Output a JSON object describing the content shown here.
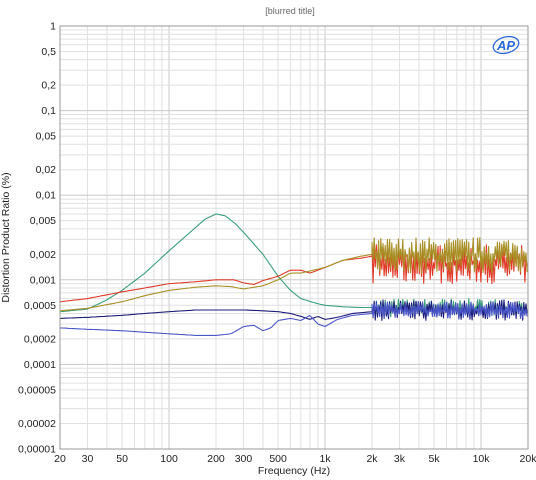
{
  "chart_data": {
    "type": "line",
    "title": "[blurred title]",
    "xlabel": "Frequency (Hz)",
    "ylabel": "Distortion Product Ratio (%)",
    "xscale": "log",
    "yscale": "log",
    "xlim": [
      20,
      20000
    ],
    "ylim": [
      1e-05,
      1
    ],
    "grid": true,
    "legend": "none",
    "logo": "AP",
    "x_tick_labels": [
      {
        "v": 20,
        "t": "20"
      },
      {
        "v": 30,
        "t": "30"
      },
      {
        "v": 50,
        "t": "50"
      },
      {
        "v": 100,
        "t": "100"
      },
      {
        "v": 200,
        "t": "200"
      },
      {
        "v": 300,
        "t": "300"
      },
      {
        "v": 500,
        "t": "500"
      },
      {
        "v": 1000,
        "t": "1k"
      },
      {
        "v": 2000,
        "t": "2k"
      },
      {
        "v": 3000,
        "t": "3k"
      },
      {
        "v": 5000,
        "t": "5k"
      },
      {
        "v": 10000,
        "t": "10k"
      },
      {
        "v": 20000,
        "t": "20k"
      }
    ],
    "y_tick_labels": [
      {
        "v": 1,
        "t": "1"
      },
      {
        "v": 0.5,
        "t": "0,5"
      },
      {
        "v": 0.2,
        "t": "0,2"
      },
      {
        "v": 0.1,
        "t": "0,1"
      },
      {
        "v": 0.05,
        "t": "0,05"
      },
      {
        "v": 0.02,
        "t": "0,02"
      },
      {
        "v": 0.01,
        "t": "0,01"
      },
      {
        "v": 0.005,
        "t": "0,005"
      },
      {
        "v": 0.002,
        "t": "0,002"
      },
      {
        "v": 0.001,
        "t": "0,001"
      },
      {
        "v": 0.0005,
        "t": "0,0005"
      },
      {
        "v": 0.0002,
        "t": "0,0002"
      },
      {
        "v": 0.0001,
        "t": "0,0001"
      },
      {
        "v": 5e-05,
        "t": "0,00005"
      },
      {
        "v": 2e-05,
        "t": "0,00002"
      },
      {
        "v": 1e-05,
        "t": "0,00001"
      }
    ],
    "series": [
      {
        "color": "#3aa07a",
        "points": [
          [
            20,
            0.00042
          ],
          [
            30,
            0.00045
          ],
          [
            40,
            0.00058
          ],
          [
            50,
            0.00075
          ],
          [
            70,
            0.0012
          ],
          [
            100,
            0.0022
          ],
          [
            140,
            0.0038
          ],
          [
            170,
            0.0052
          ],
          [
            200,
            0.006
          ],
          [
            230,
            0.0057
          ],
          [
            270,
            0.0045
          ],
          [
            320,
            0.0032
          ],
          [
            400,
            0.002
          ],
          [
            500,
            0.0011
          ],
          [
            600,
            0.00075
          ],
          [
            700,
            0.0006
          ],
          [
            900,
            0.00052
          ],
          [
            1000,
            0.0005
          ],
          [
            1300,
            0.00048
          ],
          [
            1700,
            0.00047
          ],
          [
            2000,
            0.00047
          ]
        ],
        "noise": {
          "from": 2000,
          "to": 20000,
          "lo": 0.00036,
          "hi": 0.0006
        }
      },
      {
        "color": "#e23a2a",
        "points": [
          [
            20,
            0.00055
          ],
          [
            30,
            0.0006
          ],
          [
            50,
            0.00072
          ],
          [
            70,
            0.0008
          ],
          [
            100,
            0.0009
          ],
          [
            150,
            0.00095
          ],
          [
            200,
            0.001
          ],
          [
            260,
            0.001
          ],
          [
            300,
            0.00092
          ],
          [
            350,
            0.00088
          ],
          [
            400,
            0.00098
          ],
          [
            500,
            0.0011
          ],
          [
            600,
            0.0013
          ],
          [
            700,
            0.0013
          ],
          [
            800,
            0.0012
          ],
          [
            1000,
            0.0014
          ],
          [
            1300,
            0.0017
          ],
          [
            1700,
            0.0018
          ],
          [
            2000,
            0.0019
          ]
        ],
        "noise": {
          "from": 2000,
          "to": 20000,
          "lo": 0.0009,
          "hi": 0.0026
        }
      },
      {
        "color": "#a89026",
        "points": [
          [
            20,
            0.00043
          ],
          [
            30,
            0.00046
          ],
          [
            50,
            0.00055
          ],
          [
            70,
            0.00065
          ],
          [
            100,
            0.00075
          ],
          [
            150,
            0.00082
          ],
          [
            200,
            0.00085
          ],
          [
            250,
            0.00083
          ],
          [
            300,
            0.00078
          ],
          [
            400,
            0.00085
          ],
          [
            500,
            0.001
          ],
          [
            600,
            0.0012
          ],
          [
            700,
            0.0012
          ],
          [
            1000,
            0.0014
          ],
          [
            1300,
            0.0017
          ],
          [
            1700,
            0.0019
          ],
          [
            2000,
            0.002
          ]
        ],
        "noise": {
          "from": 2000,
          "to": 20000,
          "lo": 0.0012,
          "hi": 0.0032
        }
      },
      {
        "color": "#1c1c7a",
        "points": [
          [
            20,
            0.00035
          ],
          [
            30,
            0.00036
          ],
          [
            50,
            0.00038
          ],
          [
            70,
            0.0004
          ],
          [
            100,
            0.00042
          ],
          [
            150,
            0.00044
          ],
          [
            200,
            0.00044
          ],
          [
            300,
            0.00044
          ],
          [
            400,
            0.00043
          ],
          [
            500,
            0.00042
          ],
          [
            600,
            0.0004
          ],
          [
            700,
            0.00037
          ],
          [
            800,
            0.00034
          ],
          [
            900,
            0.00037
          ],
          [
            1000,
            0.00034
          ],
          [
            1200,
            0.00036
          ],
          [
            1500,
            0.0004
          ],
          [
            2000,
            0.00042
          ]
        ],
        "noise": {
          "from": 2000,
          "to": 20000,
          "lo": 0.00033,
          "hi": 0.00058
        }
      },
      {
        "color": "#4a56c8",
        "points": [
          [
            20,
            0.00027
          ],
          [
            30,
            0.00026
          ],
          [
            50,
            0.00025
          ],
          [
            70,
            0.00024
          ],
          [
            100,
            0.00023
          ],
          [
            150,
            0.00022
          ],
          [
            200,
            0.00022
          ],
          [
            250,
            0.00023
          ],
          [
            300,
            0.00028
          ],
          [
            350,
            0.00029
          ],
          [
            400,
            0.00025
          ],
          [
            450,
            0.00027
          ],
          [
            500,
            0.00033
          ],
          [
            600,
            0.00035
          ],
          [
            700,
            0.00033
          ],
          [
            800,
            0.00038
          ],
          [
            900,
            0.0003
          ],
          [
            1000,
            0.00028
          ],
          [
            1200,
            0.00034
          ],
          [
            1500,
            0.00038
          ],
          [
            2000,
            0.0004
          ]
        ],
        "noise": {
          "from": 2000,
          "to": 20000,
          "lo": 0.00035,
          "hi": 0.00055
        }
      }
    ]
  }
}
